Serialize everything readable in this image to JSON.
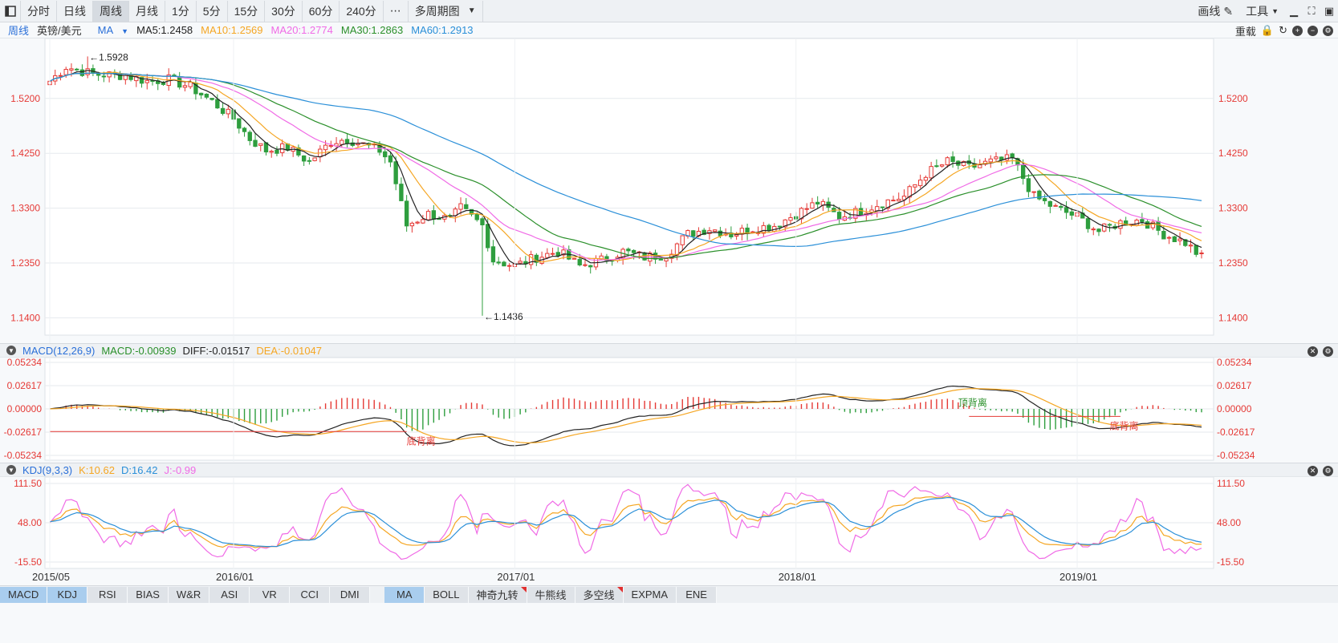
{
  "toolbar": {
    "periods": [
      "分时",
      "日线",
      "周线",
      "月线",
      "1分",
      "5分",
      "15分",
      "30分",
      "60分",
      "240分"
    ],
    "active_period": "周线",
    "more_label": "⋯",
    "multi_period": "多周期图",
    "draw_label": "画线",
    "tools_label": "工具"
  },
  "info": {
    "period": "周线",
    "symbol": "英镑/美元",
    "indicator": "MA",
    "ma5": "MA5:1.2458",
    "ma10": "MA10:1.2569",
    "ma20": "MA20:1.2774",
    "ma30": "MA30:1.2863",
    "ma60": "MA60:1.2913",
    "reset": "重载"
  },
  "macd_bar": {
    "name": "MACD(12,26,9)",
    "macd": "MACD:-0.00939",
    "diff": "DIFF:-0.01517",
    "dea": "DEA:-0.01047"
  },
  "kdj_bar": {
    "name": "KDJ(9,3,3)",
    "k": "K:10.62",
    "d": "D:16.42",
    "j": "J:-0.99"
  },
  "colors": {
    "up": "#e53935",
    "down": "#2e9e3e",
    "ma5": "#222222",
    "ma10": "#f5a623",
    "ma20": "#f06be6",
    "ma30": "#2a8f2a",
    "ma60": "#2a8fd8",
    "diff": "#222222",
    "dea": "#f5a623",
    "k": "#f5a623",
    "d": "#2a8fd8",
    "j": "#f06be6"
  },
  "chart_data": [
    {
      "type": "candlestick",
      "title": "",
      "y_ticks": [
        "1.5200",
        "1.4250",
        "1.3300",
        "1.2350",
        "1.1400"
      ],
      "ylim": [
        1.11,
        1.61
      ],
      "annotations": [
        "←1.5928",
        "←1.1436"
      ],
      "x_ticks": [
        "2015/05",
        "2016/01",
        "2017/01",
        "2018/01",
        "2019/01"
      ],
      "weeks": 214,
      "anchors": [
        [
          0,
          1.55
        ],
        [
          3,
          1.575
        ],
        [
          8,
          1.562
        ],
        [
          14,
          1.56
        ],
        [
          18,
          1.55
        ],
        [
          22,
          1.553
        ],
        [
          26,
          1.54
        ],
        [
          30,
          1.515
        ],
        [
          34,
          1.485
        ],
        [
          37,
          1.45
        ],
        [
          40,
          1.43
        ],
        [
          44,
          1.435
        ],
        [
          48,
          1.41
        ],
        [
          52,
          1.445
        ],
        [
          55,
          1.45
        ],
        [
          58,
          1.44
        ],
        [
          61,
          1.43
        ],
        [
          63,
          1.41
        ],
        [
          66,
          1.3
        ],
        [
          70,
          1.32
        ],
        [
          74,
          1.31
        ],
        [
          76,
          1.33
        ],
        [
          80,
          1.3
        ],
        [
          82,
          1.24
        ],
        [
          86,
          1.23
        ],
        [
          90,
          1.245
        ],
        [
          94,
          1.255
        ],
        [
          98,
          1.23
        ],
        [
          102,
          1.24
        ],
        [
          106,
          1.255
        ],
        [
          110,
          1.245
        ],
        [
          114,
          1.25
        ],
        [
          118,
          1.285
        ],
        [
          122,
          1.295
        ],
        [
          126,
          1.285
        ],
        [
          130,
          1.295
        ],
        [
          134,
          1.3
        ],
        [
          138,
          1.32
        ],
        [
          142,
          1.34
        ],
        [
          146,
          1.315
        ],
        [
          150,
          1.325
        ],
        [
          154,
          1.34
        ],
        [
          158,
          1.35
        ],
        [
          162,
          1.39
        ],
        [
          166,
          1.41
        ],
        [
          170,
          1.4
        ],
        [
          174,
          1.41
        ],
        [
          178,
          1.415
        ],
        [
          182,
          1.35
        ],
        [
          186,
          1.33
        ],
        [
          190,
          1.315
        ],
        [
          194,
          1.29
        ],
        [
          198,
          1.305
        ],
        [
          202,
          1.31
        ],
        [
          206,
          1.285
        ],
        [
          210,
          1.27
        ],
        [
          213,
          1.245
        ]
      ]
    },
    {
      "type": "bar",
      "title": "MACD",
      "y_ticks": [
        "0.05234",
        "0.02617",
        "0.00000",
        "-0.02617",
        "-0.05234"
      ],
      "ylim": [
        -0.0523,
        0.0523
      ],
      "annotations": [
        "底背离",
        "顶背离",
        "底背离"
      ]
    },
    {
      "type": "line",
      "title": "KDJ",
      "y_ticks": [
        "111.50",
        "48.00",
        "-15.50"
      ],
      "ylim": [
        -15.5,
        111.5
      ]
    }
  ],
  "indicators_left": [
    "MACD",
    "KDJ",
    "RSI",
    "BIAS",
    "W&R",
    "ASI",
    "VR",
    "CCI",
    "DMI"
  ],
  "indicators_right": [
    "MA",
    "BOLL",
    "神奇九转",
    "牛熊线",
    "多空线",
    "EXPMA",
    "ENE"
  ],
  "active_indicators": [
    "MACD",
    "KDJ",
    "MA"
  ],
  "flagged_indicators": [
    "神奇九转",
    "多空线"
  ]
}
